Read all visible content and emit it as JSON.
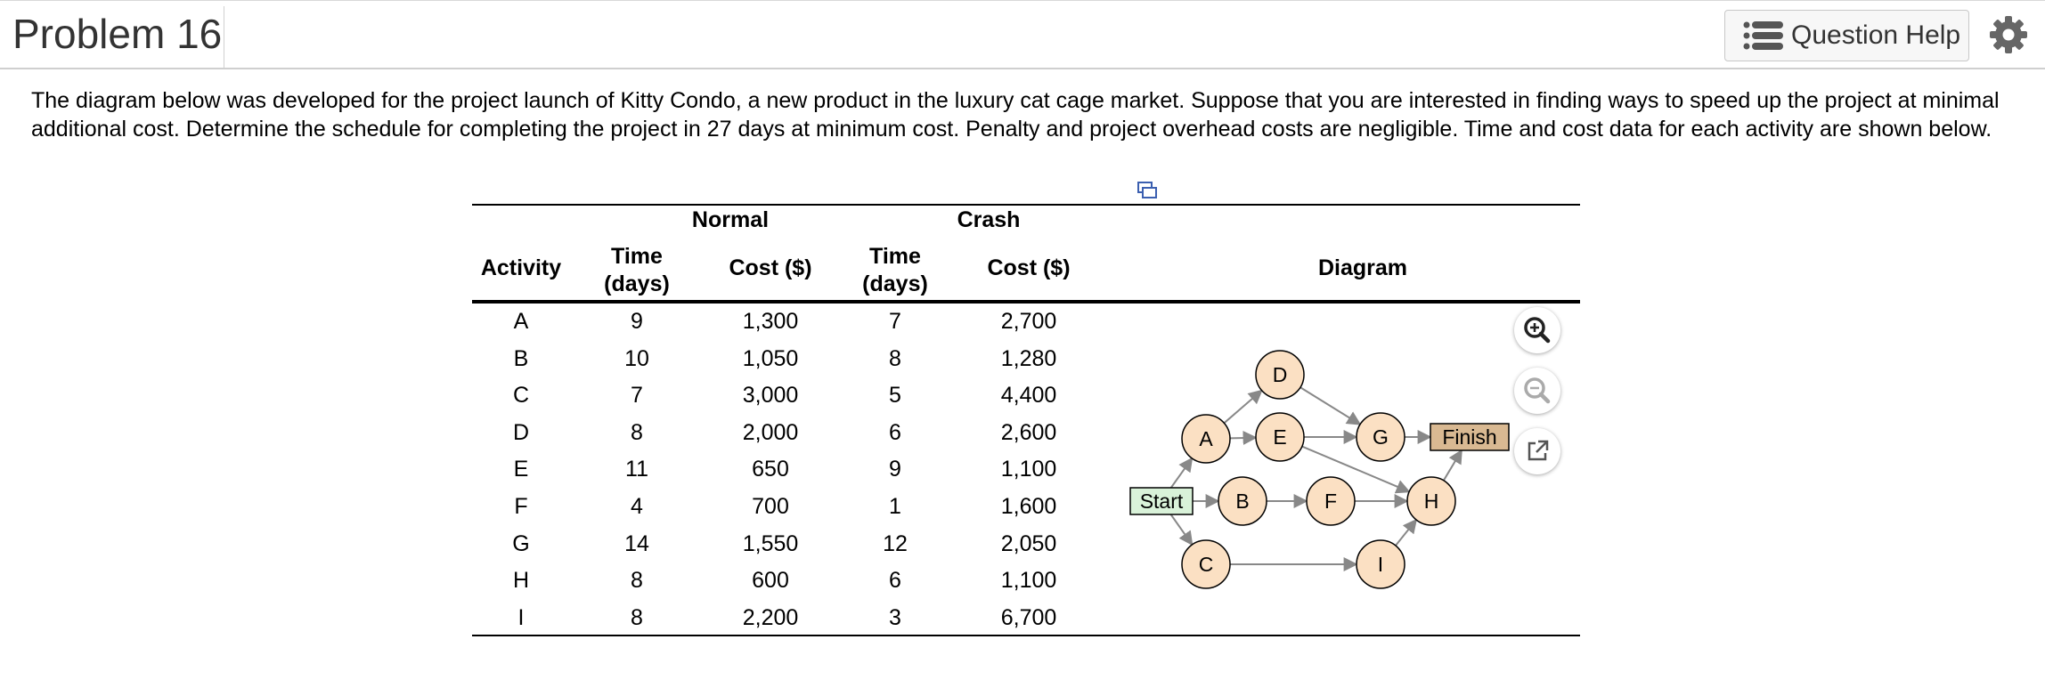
{
  "header": {
    "title": "Problem 16",
    "help_label": "Question Help"
  },
  "intro_text": "The diagram below was developed for the project launch of Kitty Condo, a new product in the luxury cat cage market. Suppose that you are interested in finding ways to speed up the project at minimal additional cost. Determine the schedule for completing the project in 27 days at minimum cost. Penalty and project overhead costs are negligible. Time and cost data for each activity are shown below.",
  "table": {
    "group_normal": "Normal",
    "group_crash": "Crash",
    "col_activity": "Activity",
    "col_time_line1": "Time",
    "col_time_line2": "(days)",
    "col_cost": "Cost ($)",
    "col_diagram": "Diagram",
    "rows": [
      {
        "activity": "A",
        "normal_time": "9",
        "normal_cost": "1,300",
        "crash_time": "7",
        "crash_cost": "2,700"
      },
      {
        "activity": "B",
        "normal_time": "10",
        "normal_cost": "1,050",
        "crash_time": "8",
        "crash_cost": "1,280"
      },
      {
        "activity": "C",
        "normal_time": "7",
        "normal_cost": "3,000",
        "crash_time": "5",
        "crash_cost": "4,400"
      },
      {
        "activity": "D",
        "normal_time": "8",
        "normal_cost": "2,000",
        "crash_time": "6",
        "crash_cost": "2,600"
      },
      {
        "activity": "E",
        "normal_time": "11",
        "normal_cost": "650",
        "crash_time": "9",
        "crash_cost": "1,100"
      },
      {
        "activity": "F",
        "normal_time": "4",
        "normal_cost": "700",
        "crash_time": "1",
        "crash_cost": "1,600"
      },
      {
        "activity": "G",
        "normal_time": "14",
        "normal_cost": "1,550",
        "crash_time": "12",
        "crash_cost": "2,050"
      },
      {
        "activity": "H",
        "normal_time": "8",
        "normal_cost": "600",
        "crash_time": "6",
        "crash_cost": "1,100"
      },
      {
        "activity": "I",
        "normal_time": "8",
        "normal_cost": "2,200",
        "crash_time": "3",
        "crash_cost": "6,700"
      }
    ]
  },
  "diagram": {
    "start_label": "Start",
    "finish_label": "Finish",
    "nodes": [
      "A",
      "B",
      "C",
      "D",
      "E",
      "F",
      "G",
      "H",
      "I"
    ],
    "edges": [
      [
        "Start",
        "A"
      ],
      [
        "Start",
        "B"
      ],
      [
        "Start",
        "C"
      ],
      [
        "A",
        "D"
      ],
      [
        "A",
        "E"
      ],
      [
        "B",
        "F"
      ],
      [
        "C",
        "I"
      ],
      [
        "D",
        "G"
      ],
      [
        "E",
        "G"
      ],
      [
        "E",
        "H"
      ],
      [
        "F",
        "H"
      ],
      [
        "I",
        "H"
      ],
      [
        "G",
        "Finish"
      ],
      [
        "H",
        "Finish"
      ]
    ]
  },
  "colors": {
    "node_fill": "#fbe0c3",
    "start_fill": "#d9f2d9",
    "finish_fill": "#d9b992",
    "arrow": "#888888"
  }
}
